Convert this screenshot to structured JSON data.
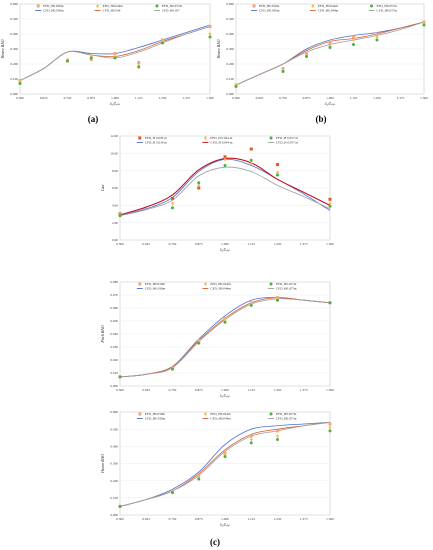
{
  "chart_data": [
    {
      "id": "a",
      "type": "line",
      "panel_label": "(a)",
      "xlabel": "λ₁/Lₚₚ",
      "ylabel": "Heave RAO",
      "xlim": [
        0.5,
        1.5
      ],
      "ylim": [
        0.0,
        0.6
      ],
      "xticks": [
        0.5,
        0.625,
        0.75,
        0.875,
        1.0,
        1.125,
        1.25,
        1.375,
        1.5
      ],
      "xticklabels": [
        "0.500",
        "0.625",
        "0.750",
        "0.875",
        "1.000",
        "1.125",
        "1.250",
        "1.375",
        "1.500"
      ],
      "yticks": [
        0.0,
        0.1,
        0.2,
        0.3,
        0.4,
        0.5,
        0.6
      ],
      "yticklabels": [
        "0.000",
        "0.100",
        "0.200",
        "0.300",
        "0.400",
        "0.500",
        "0.600"
      ],
      "legend": [
        "EFD_H0.030m",
        "EFD_H0.044m",
        "EFD_H0.057m",
        "CFD_H0.030m",
        "CFD_H0.044",
        "CFD_H0.057"
      ],
      "series": [
        {
          "name": "EFD_H0.030m",
          "kind": "marker",
          "x": [
            0.5,
            0.75,
            0.875,
            1.0,
            1.125,
            1.25,
            1.5
          ],
          "y": [
            0.09,
            0.22,
            0.23,
            0.27,
            0.21,
            0.36,
            0.45
          ]
        },
        {
          "name": "EFD_H0.044m",
          "kind": "marker",
          "x": [
            0.5,
            0.75,
            0.875,
            1.0,
            1.125,
            1.25,
            1.5
          ],
          "y": [
            0.08,
            0.23,
            0.25,
            0.25,
            0.19,
            0.35,
            0.4
          ]
        },
        {
          "name": "EFD_H0.057m",
          "kind": "marker",
          "x": [
            0.5,
            0.75,
            0.875,
            1.0,
            1.125,
            1.25,
            1.5
          ],
          "y": [
            0.07,
            0.22,
            0.24,
            0.24,
            0.18,
            0.34,
            0.38
          ]
        },
        {
          "name": "CFD_H0.030m",
          "kind": "line",
          "x": [
            0.5,
            0.625,
            0.75,
            0.875,
            1.0,
            1.125,
            1.25,
            1.375,
            1.5
          ],
          "y": [
            0.09,
            0.17,
            0.28,
            0.27,
            0.27,
            0.31,
            0.36,
            0.41,
            0.46
          ]
        },
        {
          "name": "CFD_H0.044",
          "kind": "line",
          "x": [
            0.5,
            0.625,
            0.75,
            0.875,
            1.0,
            1.125,
            1.25,
            1.375,
            1.5
          ],
          "y": [
            0.09,
            0.17,
            0.28,
            0.26,
            0.25,
            0.29,
            0.35,
            0.4,
            0.45
          ]
        },
        {
          "name": "CFD_H0.057",
          "kind": "line",
          "x": [
            0.5,
            0.625,
            0.75,
            0.875,
            1.0,
            1.125,
            1.25,
            1.375,
            1.5
          ],
          "y": [
            0.09,
            0.17,
            0.28,
            0.26,
            0.24,
            0.28,
            0.34,
            0.4,
            0.45
          ]
        }
      ]
    },
    {
      "id": "b",
      "type": "line",
      "panel_label": "(b)",
      "xlabel": "λ₁/Lₚₚ",
      "ylabel": "Heave RAO",
      "xlim": [
        0.5,
        1.5
      ],
      "ylim": [
        0.0,
        0.6
      ],
      "xticks": [
        0.5,
        0.625,
        0.75,
        0.875,
        1.0,
        1.125,
        1.25,
        1.375,
        1.5
      ],
      "xticklabels": [
        "0.500",
        "0.625",
        "0.750",
        "0.875",
        "1.000",
        "1.125",
        "1.250",
        "1.375",
        "1.500"
      ],
      "yticks": [
        0.0,
        0.1,
        0.2,
        0.3,
        0.4,
        0.5,
        0.6
      ],
      "yticklabels": [
        "0.000",
        "0.100",
        "0.200",
        "0.300",
        "0.400",
        "0.500",
        "0.600"
      ],
      "legend": [
        "EFD_H0.030m",
        "EFD_H0.044m",
        "EFD_H0.057m",
        "CFD_H0.030m",
        "CFD_H0.044m",
        "CFD_H0.057m"
      ],
      "series": [
        {
          "name": "EFD_H0.030m",
          "kind": "marker",
          "x": [
            0.5,
            0.75,
            0.875,
            1.0,
            1.125,
            1.25,
            1.5
          ],
          "y": [
            0.06,
            0.17,
            0.27,
            0.34,
            0.38,
            0.4,
            0.48
          ]
        },
        {
          "name": "EFD_H0.044m",
          "kind": "marker",
          "x": [
            0.5,
            0.75,
            0.875,
            1.0,
            1.125,
            1.25,
            1.5
          ],
          "y": [
            0.06,
            0.16,
            0.26,
            0.32,
            0.36,
            0.38,
            0.47
          ]
        },
        {
          "name": "EFD_H0.057m",
          "kind": "marker",
          "x": [
            0.5,
            0.75,
            0.875,
            1.0,
            1.125,
            1.25,
            1.5
          ],
          "y": [
            0.05,
            0.15,
            0.25,
            0.31,
            0.33,
            0.36,
            0.46
          ]
        },
        {
          "name": "CFD_H0.030m",
          "kind": "line",
          "x": [
            0.5,
            0.625,
            0.75,
            0.875,
            1.0,
            1.125,
            1.25,
            1.375,
            1.5
          ],
          "y": [
            0.06,
            0.13,
            0.2,
            0.3,
            0.36,
            0.39,
            0.41,
            0.44,
            0.48
          ]
        },
        {
          "name": "CFD_H0.044m",
          "kind": "line",
          "x": [
            0.5,
            0.625,
            0.75,
            0.875,
            1.0,
            1.125,
            1.25,
            1.375,
            1.5
          ],
          "y": [
            0.06,
            0.13,
            0.2,
            0.29,
            0.35,
            0.37,
            0.4,
            0.44,
            0.48
          ]
        },
        {
          "name": "CFD_H0.057m",
          "kind": "line",
          "x": [
            0.5,
            0.625,
            0.75,
            0.875,
            1.0,
            1.125,
            1.25,
            1.375,
            1.5
          ],
          "y": [
            0.06,
            0.13,
            0.2,
            0.28,
            0.33,
            0.36,
            0.39,
            0.43,
            0.48
          ]
        }
      ]
    },
    {
      "id": "c1",
      "type": "line",
      "xlabel": "λ₁/Lₚₚ",
      "ylabel": "Cᴀᴡ",
      "xlim": [
        0.5,
        1.5
      ],
      "ylim": [
        0.0,
        12.0
      ],
      "xticks": [
        0.5,
        0.625,
        0.75,
        0.875,
        1.0,
        1.125,
        1.25,
        1.375,
        1.5
      ],
      "xticklabels": [
        "0.500",
        "0.625",
        "0.750",
        "0.875",
        "1.000",
        "1.125",
        "1.250",
        "1.375",
        "1.500"
      ],
      "yticks": [
        0,
        2,
        4,
        6,
        8,
        10,
        12
      ],
      "yticklabels": [
        "0.00",
        "2.00",
        "4.00",
        "6.00",
        "8.00",
        "10.00",
        "12.00"
      ],
      "legend": [
        "EFD_H 0.030 m",
        "EFD_H 0.044 m",
        "EFD_H 0.057 m",
        "CFD_H 0.030 m",
        "CFD_H 0.044 m",
        "CFD_H 0.057 m"
      ],
      "series": [
        {
          "name": "EFD_H 0.030 m",
          "kind": "marker",
          "x": [
            0.5,
            0.75,
            0.875,
            1.0,
            1.125,
            1.25,
            1.5
          ],
          "y": [
            3.0,
            4.8,
            6.0,
            9.6,
            10.5,
            8.7,
            4.7
          ]
        },
        {
          "name": "EFD_H 0.044 m",
          "kind": "marker",
          "x": [
            0.5,
            0.75,
            0.875,
            1.0,
            1.125,
            1.25,
            1.5
          ],
          "y": [
            2.9,
            4.2,
            6.3,
            9.3,
            8.8,
            7.8,
            4.2
          ]
        },
        {
          "name": "EFD_H 0.057 m",
          "kind": "marker",
          "x": [
            0.5,
            0.75,
            0.875,
            1.0,
            1.125,
            1.25,
            1.5
          ],
          "y": [
            2.8,
            3.7,
            6.6,
            8.6,
            9.2,
            7.5,
            3.9
          ]
        },
        {
          "name": "CFD_H 0.030 m",
          "kind": "line",
          "x": [
            0.5,
            0.625,
            0.75,
            0.875,
            1.0,
            1.125,
            1.25,
            1.375,
            1.5
          ],
          "y": [
            2.8,
            3.6,
            4.9,
            7.9,
            9.3,
            8.6,
            7.0,
            5.3,
            3.4
          ]
        },
        {
          "name": "CFD_H 0.044 m",
          "kind": "line",
          "x": [
            0.5,
            0.625,
            0.75,
            0.875,
            1.0,
            1.125,
            1.25,
            1.375,
            1.5
          ],
          "y": [
            2.9,
            3.8,
            5.2,
            8.1,
            9.4,
            8.9,
            7.0,
            5.5,
            4.0
          ]
        },
        {
          "name": "CFD_H 0.057 m",
          "kind": "line",
          "x": [
            0.5,
            0.625,
            0.75,
            0.875,
            1.0,
            1.125,
            1.25,
            1.375,
            1.5
          ],
          "y": [
            2.8,
            3.5,
            4.6,
            7.4,
            8.4,
            7.9,
            6.3,
            5.0,
            3.6
          ]
        }
      ]
    },
    {
      "id": "c2",
      "type": "line",
      "xlabel": "λ₁/Lₚₚ",
      "ylabel": "Pitch RAO",
      "xlim": [
        0.5,
        1.5
      ],
      "ylim": [
        0.0,
        0.08
      ],
      "xticks": [
        0.5,
        0.625,
        0.75,
        0.875,
        1.0,
        1.125,
        1.25,
        1.375,
        1.5
      ],
      "xticklabels": [
        "0.500",
        "0.625",
        "0.750",
        "0.875",
        "1.000",
        "1.125",
        "1.250",
        "1.375",
        "1.500"
      ],
      "yticks": [
        0.0,
        0.01,
        0.02,
        0.03,
        0.04,
        0.05,
        0.06,
        0.07,
        0.08
      ],
      "yticklabels": [
        "0.000",
        "0.010",
        "0.020",
        "0.030",
        "0.040",
        "0.050",
        "0.060",
        "0.070",
        "0.080"
      ],
      "legend": [
        "EFD_H0.030m",
        "EFD_H0.044m",
        "EFD_H0.057m",
        "CFD_H0.030m",
        "CFD_H0.044m",
        "CFD_H0.057m"
      ],
      "series": [
        {
          "name": "EFD_H0.030m",
          "kind": "marker",
          "x": [
            0.5,
            0.75,
            0.875,
            1.0,
            1.125,
            1.25,
            1.5
          ],
          "y": [
            0.007,
            0.014,
            0.035,
            0.052,
            0.064,
            0.068,
            0.064
          ]
        },
        {
          "name": "EFD_H0.044m",
          "kind": "marker",
          "x": [
            0.5,
            0.75,
            0.875,
            1.0,
            1.125,
            1.25,
            1.5
          ],
          "y": [
            0.007,
            0.013,
            0.034,
            0.051,
            0.063,
            0.067,
            0.064
          ]
        },
        {
          "name": "EFD_H0.057m",
          "kind": "marker",
          "x": [
            0.5,
            0.75,
            0.875,
            1.0,
            1.125,
            1.25,
            1.5
          ],
          "y": [
            0.007,
            0.013,
            0.033,
            0.049,
            0.062,
            0.066,
            0.064
          ]
        },
        {
          "name": "CFD_H0.030m",
          "kind": "line",
          "x": [
            0.5,
            0.625,
            0.75,
            0.875,
            1.0,
            1.125,
            1.25,
            1.375,
            1.5
          ],
          "y": [
            0.007,
            0.009,
            0.015,
            0.036,
            0.054,
            0.066,
            0.068,
            0.066,
            0.064
          ]
        },
        {
          "name": "CFD_H0.044m",
          "kind": "line",
          "x": [
            0.5,
            0.625,
            0.75,
            0.875,
            1.0,
            1.125,
            1.25,
            1.375,
            1.5
          ],
          "y": [
            0.007,
            0.009,
            0.015,
            0.035,
            0.052,
            0.064,
            0.068,
            0.066,
            0.064
          ]
        },
        {
          "name": "CFD_H0.057m",
          "kind": "line",
          "x": [
            0.5,
            0.625,
            0.75,
            0.875,
            1.0,
            1.125,
            1.25,
            1.375,
            1.5
          ],
          "y": [
            0.007,
            0.009,
            0.014,
            0.034,
            0.051,
            0.063,
            0.067,
            0.066,
            0.064
          ]
        }
      ]
    },
    {
      "id": "c3",
      "type": "line",
      "panel_label": "(c)",
      "xlabel": "λ₁/Lₚₚ",
      "ylabel": "Heave RAO",
      "xlim": [
        0.5,
        1.5
      ],
      "ylim": [
        0.0,
        0.6
      ],
      "xticks": [
        0.5,
        0.625,
        0.75,
        0.875,
        1.0,
        1.125,
        1.25,
        1.375,
        1.5
      ],
      "xticklabels": [
        "0.500",
        "0.625",
        "0.750",
        "0.875",
        "1.000",
        "1.125",
        "1.250",
        "1.375",
        "1.500"
      ],
      "yticks": [
        0.0,
        0.1,
        0.2,
        0.3,
        0.4,
        0.5,
        0.6
      ],
      "yticklabels": [
        "0.000",
        "0.100",
        "0.200",
        "0.300",
        "0.400",
        "0.500",
        "0.600"
      ],
      "legend": [
        "EFD_H0.030m",
        "EFD_H0.044m",
        "EFD_H0.057m",
        "CFD_H0.030m",
        "CFD_H0.044m",
        "CFD_H0.057m"
      ],
      "series": [
        {
          "name": "EFD_H0.030m",
          "kind": "marker",
          "x": [
            0.5,
            0.75,
            0.875,
            1.0,
            1.125,
            1.25,
            1.5
          ],
          "y": [
            0.05,
            0.14,
            0.23,
            0.36,
            0.46,
            0.49,
            0.53
          ]
        },
        {
          "name": "EFD_H0.044m",
          "kind": "marker",
          "x": [
            0.5,
            0.75,
            0.875,
            1.0,
            1.125,
            1.25,
            1.5
          ],
          "y": [
            0.05,
            0.13,
            0.22,
            0.35,
            0.44,
            0.46,
            0.51
          ]
        },
        {
          "name": "EFD_H0.057m",
          "kind": "marker",
          "x": [
            0.5,
            0.75,
            0.875,
            1.0,
            1.125,
            1.25,
            1.5
          ],
          "y": [
            0.05,
            0.13,
            0.21,
            0.34,
            0.42,
            0.44,
            0.49
          ]
        },
        {
          "name": "CFD_H0.030m",
          "kind": "line",
          "x": [
            0.5,
            0.625,
            0.75,
            0.875,
            1.0,
            1.125,
            1.25,
            1.375,
            1.5
          ],
          "y": [
            0.05,
            0.09,
            0.15,
            0.25,
            0.41,
            0.5,
            0.52,
            0.53,
            0.54
          ]
        },
        {
          "name": "CFD_H0.044m",
          "kind": "line",
          "x": [
            0.5,
            0.625,
            0.75,
            0.875,
            1.0,
            1.125,
            1.25,
            1.375,
            1.5
          ],
          "y": [
            0.05,
            0.09,
            0.14,
            0.24,
            0.38,
            0.47,
            0.5,
            0.52,
            0.54
          ]
        },
        {
          "name": "CFD_H0.057m",
          "kind": "line",
          "x": [
            0.5,
            0.625,
            0.75,
            0.875,
            1.0,
            1.125,
            1.25,
            1.375,
            1.5
          ],
          "y": [
            0.05,
            0.09,
            0.14,
            0.23,
            0.37,
            0.46,
            0.49,
            0.52,
            0.54
          ]
        }
      ]
    }
  ],
  "styles": {
    "EFD_1": {
      "color": "#f4a582",
      "marker": "square"
    },
    "EFD_2": {
      "color": "#f0c14b",
      "marker": "diamond"
    },
    "EFD_3": {
      "color": "#4daf4a",
      "marker": "circle"
    },
    "EFD_c1_1": {
      "color": "#e8552a",
      "marker": "square"
    },
    "EFD_c1_2": {
      "color": "#ffb14e",
      "marker": "diamond"
    },
    "EFD_c1_3": {
      "color": "#3cb44b",
      "marker": "circle"
    },
    "CFD_1": {
      "color": "#4a6fd1"
    },
    "CFD_2": {
      "color": "#d9602c"
    },
    "CFD_3": {
      "color": "#9e9e9e"
    },
    "CFD_c1_2": {
      "color": "#c0141e"
    }
  }
}
